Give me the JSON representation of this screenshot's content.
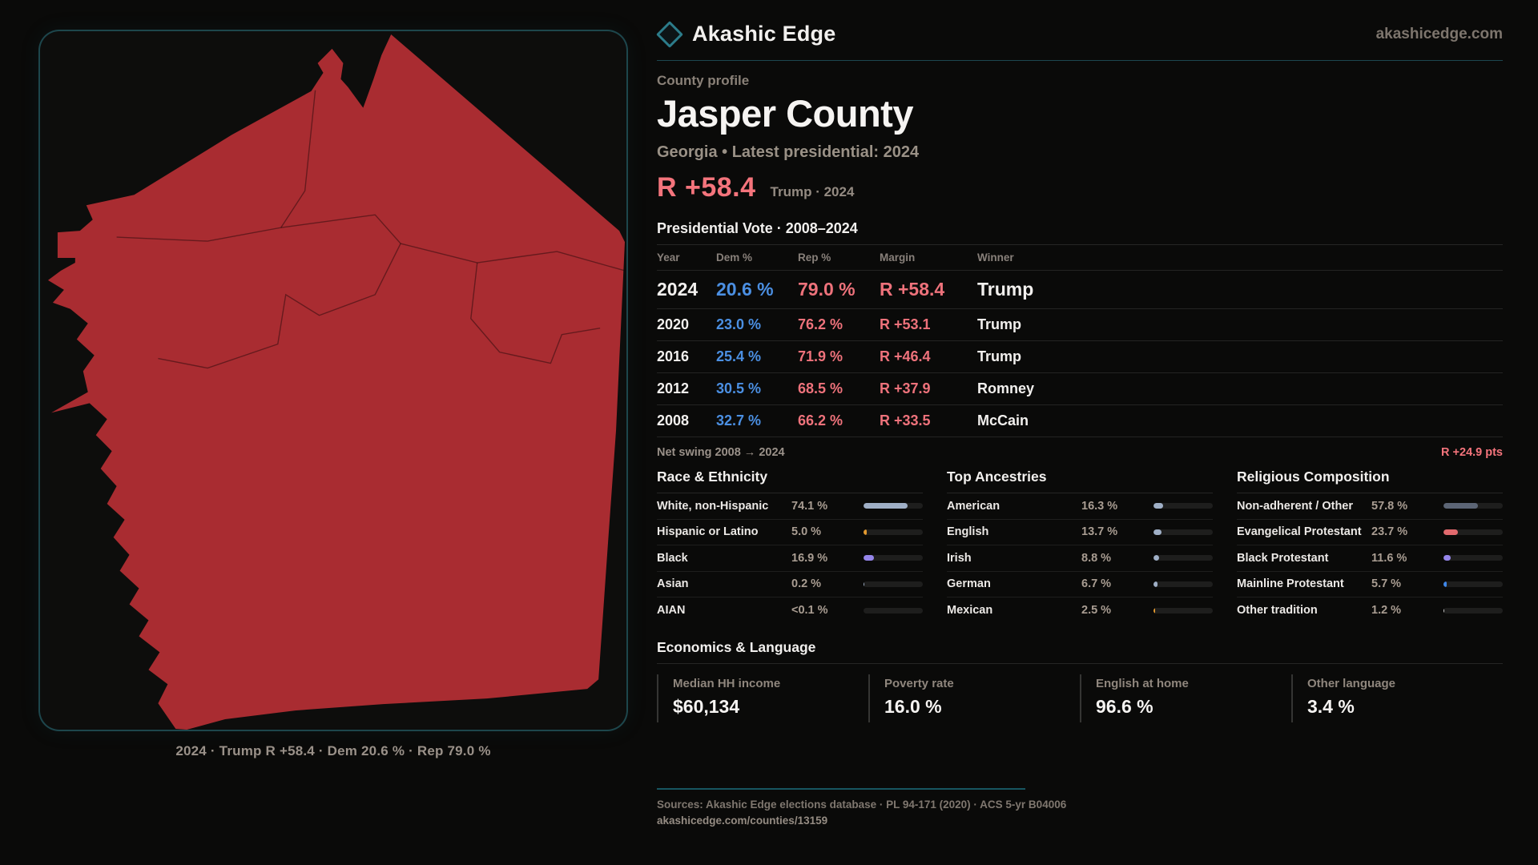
{
  "brand": {
    "name": "Akashic Edge",
    "domain": "akashicedge.com"
  },
  "profile": {
    "eyebrow": "County profile",
    "title": "Jasper County",
    "subtitle": "Georgia • Latest presidential: 2024",
    "margin_value": "R +58.4",
    "margin_context": "Trump · 2024"
  },
  "vote_table": {
    "title": "Presidential Vote · 2008–2024",
    "columns": {
      "year": "Year",
      "dem": "Dem %",
      "rep": "Rep %",
      "margin": "Margin",
      "winner": "Winner"
    },
    "rows": [
      {
        "year": "2024",
        "dem": "20.6 %",
        "rep": "79.0 %",
        "margin": "R +58.4",
        "winner": "Trump"
      },
      {
        "year": "2020",
        "dem": "23.0 %",
        "rep": "76.2 %",
        "margin": "R +53.1",
        "winner": "Trump"
      },
      {
        "year": "2016",
        "dem": "25.4 %",
        "rep": "71.9 %",
        "margin": "R +46.4",
        "winner": "Trump"
      },
      {
        "year": "2012",
        "dem": "30.5 %",
        "rep": "68.5 %",
        "margin": "R +37.9",
        "winner": "Romney"
      },
      {
        "year": "2008",
        "dem": "32.7 %",
        "rep": "66.2 %",
        "margin": "R +33.5",
        "winner": "McCain"
      }
    ],
    "net_swing_label": "Net swing 2008 → 2024",
    "net_swing_value": "R +24.9 pts"
  },
  "stat_lists": [
    {
      "title": "Race & Ethnicity",
      "rows": [
        {
          "label": "White, non-Hispanic",
          "value": "74.1 %",
          "pct": 74.1,
          "color": "#9fafc6"
        },
        {
          "label": "Hispanic or Latino",
          "value": "5.0 %",
          "pct": 5.0,
          "color": "#e2992f"
        },
        {
          "label": "Black",
          "value": "16.9 %",
          "pct": 16.9,
          "color": "#9585ea"
        },
        {
          "label": "Asian",
          "value": "0.2 %",
          "pct": 0.2,
          "color": "#9fafc6"
        },
        {
          "label": "AIAN",
          "value": "<0.1 %",
          "pct": 0,
          "color": "#9fafc6"
        }
      ]
    },
    {
      "title": "Top Ancestries",
      "rows": [
        {
          "label": "American",
          "value": "16.3 %",
          "pct": 16.3,
          "color": "#9fafc6"
        },
        {
          "label": "English",
          "value": "13.7 %",
          "pct": 13.7,
          "color": "#9fafc6"
        },
        {
          "label": "Irish",
          "value": "8.8 %",
          "pct": 8.8,
          "color": "#9fafc6"
        },
        {
          "label": "German",
          "value": "6.7 %",
          "pct": 6.7,
          "color": "#9fafc6"
        },
        {
          "label": "Mexican",
          "value": "2.5 %",
          "pct": 2.5,
          "color": "#e2992f"
        }
      ]
    },
    {
      "title": "Religious Composition",
      "rows": [
        {
          "label": "Non-adherent / Other",
          "value": "57.8 %",
          "pct": 57.8,
          "color": "#5c6575"
        },
        {
          "label": "Evangelical Protestant",
          "value": "23.7 %",
          "pct": 23.7,
          "color": "#e26a6e"
        },
        {
          "label": "Black Protestant",
          "value": "11.6 %",
          "pct": 11.6,
          "color": "#9585ea"
        },
        {
          "label": "Mainline Protestant",
          "value": "5.7 %",
          "pct": 5.7,
          "color": "#3f87e8"
        },
        {
          "label": "Other tradition",
          "value": "1.2 %",
          "pct": 1.2,
          "color": "#cfcfcf"
        }
      ]
    }
  ],
  "economics": {
    "title": "Economics & Language",
    "stats": [
      {
        "label": "Median HH income",
        "value": "$60,134"
      },
      {
        "label": "Poverty rate",
        "value": "16.0 %"
      },
      {
        "label": "English at home",
        "value": "96.6 %"
      },
      {
        "label": "Other language",
        "value": "3.4 %"
      }
    ]
  },
  "map": {
    "caption": "2024 · Trump R +58.4 · Dem 20.6 % · Rep 79.0 %",
    "fill_color": "#a92c31"
  },
  "footer": {
    "sources": "Sources: Akashic Edge elections database · PL 94-171 (2020) · ACS 5-yr B04006",
    "permalink": "akashicedge.com/counties/13159"
  }
}
